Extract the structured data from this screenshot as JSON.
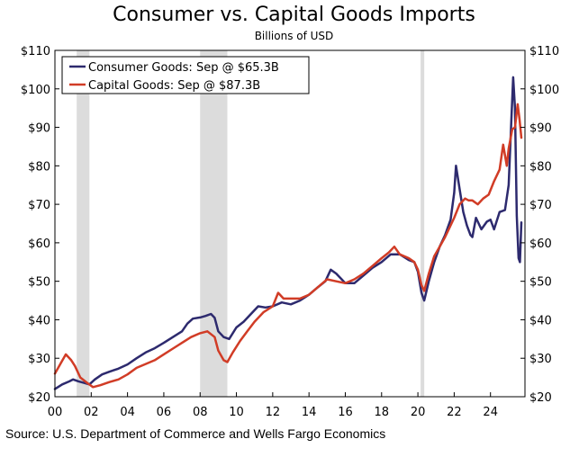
{
  "chart_data": {
    "type": "line",
    "title": "Consumer vs. Capital Goods Imports",
    "subtitle": "Billions of USD",
    "source": "Source: U.S. Department of Commerce and Wells Fargo Economics",
    "ylim": [
      20,
      110
    ],
    "xlim": [
      2000,
      2025.9
    ],
    "y_ticks": [
      "$110",
      "$100",
      "$90",
      "$80",
      "$70",
      "$60",
      "$50",
      "$40",
      "$30",
      "$20"
    ],
    "y_tick_values": [
      110,
      100,
      90,
      80,
      70,
      60,
      50,
      40,
      30,
      20
    ],
    "x_ticks": [
      "00",
      "02",
      "04",
      "06",
      "08",
      "10",
      "12",
      "14",
      "16",
      "18",
      "20",
      "22",
      "24"
    ],
    "x_tick_values": [
      2000,
      2002,
      2004,
      2006,
      2008,
      2010,
      2012,
      2014,
      2016,
      2018,
      2020,
      2022,
      2024
    ],
    "recessions": [
      [
        2001.2,
        2001.9
      ],
      [
        2008.0,
        2009.5
      ],
      [
        2020.15,
        2020.35
      ]
    ],
    "legend_position": "top-left",
    "grid": false,
    "series": [
      {
        "name": "Consumer Goods: Sep @ $65.3B",
        "color": "#2d2a6e",
        "points": [
          [
            2000.0,
            22.0
          ],
          [
            2000.4,
            23.2
          ],
          [
            2000.8,
            24.0
          ],
          [
            2001.0,
            24.5
          ],
          [
            2001.3,
            24.0
          ],
          [
            2001.6,
            23.6
          ],
          [
            2001.9,
            23.2
          ],
          [
            2002.2,
            24.5
          ],
          [
            2002.6,
            25.8
          ],
          [
            2003.0,
            26.5
          ],
          [
            2003.5,
            27.3
          ],
          [
            2004.0,
            28.4
          ],
          [
            2004.5,
            30.0
          ],
          [
            2005.0,
            31.5
          ],
          [
            2005.5,
            32.6
          ],
          [
            2006.0,
            34.0
          ],
          [
            2006.5,
            35.5
          ],
          [
            2007.0,
            37.0
          ],
          [
            2007.3,
            39.0
          ],
          [
            2007.6,
            40.3
          ],
          [
            2008.0,
            40.6
          ],
          [
            2008.3,
            41.0
          ],
          [
            2008.6,
            41.5
          ],
          [
            2008.8,
            40.5
          ],
          [
            2009.0,
            37.0
          ],
          [
            2009.3,
            35.5
          ],
          [
            2009.6,
            35.0
          ],
          [
            2010.0,
            38.0
          ],
          [
            2010.4,
            39.5
          ],
          [
            2010.8,
            41.5
          ],
          [
            2011.2,
            43.5
          ],
          [
            2011.6,
            43.2
          ],
          [
            2012.0,
            43.5
          ],
          [
            2012.5,
            44.5
          ],
          [
            2013.0,
            44.0
          ],
          [
            2013.5,
            45.0
          ],
          [
            2014.0,
            46.5
          ],
          [
            2014.5,
            48.5
          ],
          [
            2014.9,
            50.0
          ],
          [
            2015.2,
            53.0
          ],
          [
            2015.5,
            52.0
          ],
          [
            2016.0,
            49.5
          ],
          [
            2016.5,
            49.5
          ],
          [
            2017.0,
            51.5
          ],
          [
            2017.5,
            53.5
          ],
          [
            2018.0,
            55.0
          ],
          [
            2018.5,
            57.0
          ],
          [
            2019.0,
            57.0
          ],
          [
            2019.5,
            55.5
          ],
          [
            2019.8,
            55.0
          ],
          [
            2020.0,
            52.5
          ],
          [
            2020.2,
            47.0
          ],
          [
            2020.35,
            45.0
          ],
          [
            2020.6,
            50.0
          ],
          [
            2020.9,
            55.0
          ],
          [
            2021.2,
            59.0
          ],
          [
            2021.5,
            62.0
          ],
          [
            2021.8,
            66.0
          ],
          [
            2022.0,
            73.0
          ],
          [
            2022.1,
            80.0
          ],
          [
            2022.3,
            74.0
          ],
          [
            2022.5,
            68.0
          ],
          [
            2022.7,
            64.5
          ],
          [
            2022.9,
            62.0
          ],
          [
            2023.0,
            61.5
          ],
          [
            2023.2,
            66.5
          ],
          [
            2023.5,
            63.5
          ],
          [
            2023.8,
            65.5
          ],
          [
            2024.0,
            66.0
          ],
          [
            2024.2,
            63.5
          ],
          [
            2024.5,
            68.0
          ],
          [
            2024.8,
            68.5
          ],
          [
            2025.0,
            75.0
          ],
          [
            2025.15,
            92.0
          ],
          [
            2025.25,
            103.0
          ],
          [
            2025.35,
            95.0
          ],
          [
            2025.45,
            67.0
          ],
          [
            2025.55,
            56.0
          ],
          [
            2025.62,
            55.0
          ],
          [
            2025.7,
            65.3
          ]
        ]
      },
      {
        "name": "Capital Goods: Sep @ $87.3B",
        "color": "#d13c26",
        "points": [
          [
            2000.0,
            26.0
          ],
          [
            2000.3,
            28.5
          ],
          [
            2000.6,
            31.0
          ],
          [
            2000.9,
            29.5
          ],
          [
            2001.1,
            28.0
          ],
          [
            2001.4,
            25.0
          ],
          [
            2001.8,
            23.5
          ],
          [
            2002.1,
            22.5
          ],
          [
            2002.5,
            23.0
          ],
          [
            2003.0,
            23.8
          ],
          [
            2003.5,
            24.5
          ],
          [
            2004.0,
            25.8
          ],
          [
            2004.5,
            27.5
          ],
          [
            2005.0,
            28.5
          ],
          [
            2005.5,
            29.5
          ],
          [
            2006.0,
            31.0
          ],
          [
            2006.5,
            32.5
          ],
          [
            2007.0,
            34.0
          ],
          [
            2007.5,
            35.5
          ],
          [
            2008.0,
            36.5
          ],
          [
            2008.4,
            37.0
          ],
          [
            2008.8,
            35.5
          ],
          [
            2009.0,
            32.0
          ],
          [
            2009.3,
            29.5
          ],
          [
            2009.5,
            29.0
          ],
          [
            2009.8,
            31.5
          ],
          [
            2010.2,
            34.5
          ],
          [
            2010.6,
            37.0
          ],
          [
            2011.0,
            39.5
          ],
          [
            2011.5,
            42.0
          ],
          [
            2012.0,
            43.5
          ],
          [
            2012.3,
            47.0
          ],
          [
            2012.6,
            45.5
          ],
          [
            2013.0,
            45.5
          ],
          [
            2013.5,
            45.5
          ],
          [
            2014.0,
            46.5
          ],
          [
            2014.5,
            48.5
          ],
          [
            2015.0,
            50.5
          ],
          [
            2015.5,
            50.0
          ],
          [
            2016.0,
            49.5
          ],
          [
            2016.5,
            50.5
          ],
          [
            2017.0,
            52.0
          ],
          [
            2017.5,
            54.0
          ],
          [
            2018.0,
            56.0
          ],
          [
            2018.4,
            57.5
          ],
          [
            2018.7,
            59.0
          ],
          [
            2019.0,
            57.0
          ],
          [
            2019.5,
            56.0
          ],
          [
            2019.8,
            55.0
          ],
          [
            2020.0,
            53.0
          ],
          [
            2020.2,
            49.0
          ],
          [
            2020.35,
            47.5
          ],
          [
            2020.6,
            52.0
          ],
          [
            2020.9,
            56.5
          ],
          [
            2021.2,
            59.0
          ],
          [
            2021.5,
            61.5
          ],
          [
            2021.8,
            64.5
          ],
          [
            2022.0,
            66.5
          ],
          [
            2022.3,
            70.0
          ],
          [
            2022.6,
            71.5
          ],
          [
            2022.8,
            71.0
          ],
          [
            2023.0,
            71.0
          ],
          [
            2023.3,
            70.0
          ],
          [
            2023.6,
            71.5
          ],
          [
            2023.9,
            72.5
          ],
          [
            2024.2,
            76.0
          ],
          [
            2024.5,
            79.0
          ],
          [
            2024.7,
            85.5
          ],
          [
            2024.9,
            80.0
          ],
          [
            2025.0,
            84.5
          ],
          [
            2025.1,
            87.0
          ],
          [
            2025.2,
            89.5
          ],
          [
            2025.35,
            90.0
          ],
          [
            2025.5,
            96.0
          ],
          [
            2025.6,
            92.0
          ],
          [
            2025.7,
            87.3
          ]
        ]
      }
    ]
  }
}
